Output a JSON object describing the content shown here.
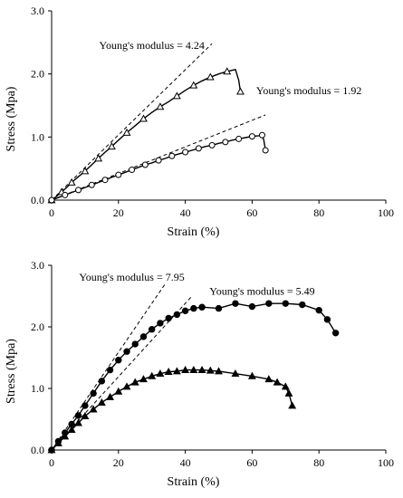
{
  "chart_data": [
    {
      "type": "line",
      "xlabel": "Strain (%)",
      "ylabel": "Stress (Mpa)",
      "xlim": [
        0,
        100
      ],
      "ylim": [
        0,
        3.0
      ],
      "x_ticks": [
        "0",
        "20",
        "40",
        "60",
        "80",
        "100"
      ],
      "y_ticks": [
        "0.0",
        "1.0",
        "2.0",
        "3.0"
      ],
      "grid": false,
      "legend": "none",
      "annotations": [
        {
          "text": "Young's modulus = 4.24",
          "x": 30,
          "y": 2.4
        },
        {
          "text": "Young's modulus = 1.92",
          "x": 77,
          "y": 1.68
        }
      ],
      "tangent_lines": [
        {
          "x": [
            0,
            48
          ],
          "y": [
            0,
            2.48
          ],
          "style": "dashed"
        },
        {
          "x": [
            0,
            64
          ],
          "y": [
            0,
            1.35
          ],
          "style": "dashed"
        }
      ],
      "series": [
        {
          "marker": "open-triangle",
          "x": [
            0,
            1.5,
            3,
            4.5,
            6,
            8,
            10,
            12,
            14,
            16,
            18,
            20,
            22.5,
            25,
            27.5,
            30,
            32.5,
            35,
            37.5,
            40,
            42.5,
            45,
            47.5,
            50,
            52.5,
            55,
            56,
            56.5
          ],
          "y": [
            0,
            0.06,
            0.13,
            0.2,
            0.28,
            0.37,
            0.46,
            0.56,
            0.66,
            0.76,
            0.85,
            0.95,
            1.07,
            1.18,
            1.29,
            1.39,
            1.48,
            1.56,
            1.65,
            1.74,
            1.82,
            1.89,
            1.95,
            2.0,
            2.04,
            2.07,
            1.9,
            1.72
          ],
          "markers_at": [
            0,
            2,
            4,
            6,
            8,
            10,
            12,
            14,
            16,
            18,
            20,
            22,
            24,
            27
          ]
        },
        {
          "marker": "open-circle",
          "x": [
            0,
            2,
            4,
            6,
            8,
            10,
            12,
            14,
            16,
            18,
            20,
            22,
            24,
            26,
            28,
            30,
            32,
            34,
            36,
            38,
            40,
            42,
            44,
            46,
            48,
            50,
            52,
            54,
            56,
            58,
            60,
            62,
            63,
            63.5,
            64
          ],
          "y": [
            0,
            0.04,
            0.08,
            0.12,
            0.16,
            0.2,
            0.24,
            0.28,
            0.32,
            0.36,
            0.4,
            0.44,
            0.48,
            0.52,
            0.56,
            0.59,
            0.63,
            0.66,
            0.7,
            0.73,
            0.76,
            0.79,
            0.82,
            0.85,
            0.87,
            0.9,
            0.92,
            0.95,
            0.97,
            0.99,
            1.01,
            1.02,
            1.03,
            0.95,
            0.79
          ],
          "markers_at": [
            0,
            2,
            4,
            6,
            8,
            10,
            12,
            14,
            16,
            18,
            20,
            22,
            24,
            26,
            28,
            30,
            32,
            34
          ]
        }
      ]
    },
    {
      "type": "line",
      "xlabel": "Strain (%)",
      "ylabel": "Stress (Mpa)",
      "xlim": [
        0,
        100
      ],
      "ylim": [
        0,
        3.0
      ],
      "x_ticks": [
        "0",
        "20",
        "40",
        "60",
        "80",
        "100"
      ],
      "y_ticks": [
        "0.0",
        "1.0",
        "2.0",
        "3.0"
      ],
      "grid": false,
      "legend": "none",
      "annotations": [
        {
          "text": "Young's modulus = 7.95",
          "x": 24,
          "y": 2.75
        },
        {
          "text": "Young's modulus = 5.49",
          "x": 63,
          "y": 2.52
        }
      ],
      "tangent_lines": [
        {
          "x": [
            0,
            34
          ],
          "y": [
            0,
            2.7
          ],
          "style": "dashed"
        },
        {
          "x": [
            0,
            42
          ],
          "y": [
            0,
            2.5
          ],
          "style": "dashed"
        }
      ],
      "series": [
        {
          "marker": "filled-circle",
          "x": [
            0,
            2,
            4,
            6,
            8,
            10,
            12.5,
            15,
            17.5,
            20,
            22.5,
            25,
            27.5,
            30,
            32.5,
            35,
            37.5,
            40,
            42.5,
            45,
            50,
            55,
            60,
            65,
            70,
            75,
            80,
            82.5,
            85
          ],
          "y": [
            0,
            0.14,
            0.28,
            0.42,
            0.56,
            0.72,
            0.92,
            1.12,
            1.3,
            1.46,
            1.6,
            1.72,
            1.84,
            1.96,
            2.06,
            2.14,
            2.2,
            2.26,
            2.3,
            2.32,
            2.3,
            2.38,
            2.33,
            2.38,
            2.38,
            2.36,
            2.27,
            2.12,
            1.9
          ]
        },
        {
          "marker": "filled-triangle",
          "x": [
            0,
            2,
            4,
            6,
            8,
            10,
            12.5,
            15,
            17.5,
            20,
            22.5,
            25,
            27.5,
            30,
            32.5,
            35,
            37.5,
            40,
            42.5,
            45,
            47.5,
            50,
            55,
            60,
            65,
            67.5,
            70,
            71,
            72
          ],
          "y": [
            0,
            0.11,
            0.22,
            0.33,
            0.44,
            0.55,
            0.66,
            0.77,
            0.86,
            0.95,
            1.03,
            1.1,
            1.15,
            1.2,
            1.24,
            1.27,
            1.28,
            1.3,
            1.3,
            1.3,
            1.29,
            1.28,
            1.24,
            1.2,
            1.15,
            1.1,
            1.03,
            0.92,
            0.72
          ]
        }
      ]
    }
  ]
}
